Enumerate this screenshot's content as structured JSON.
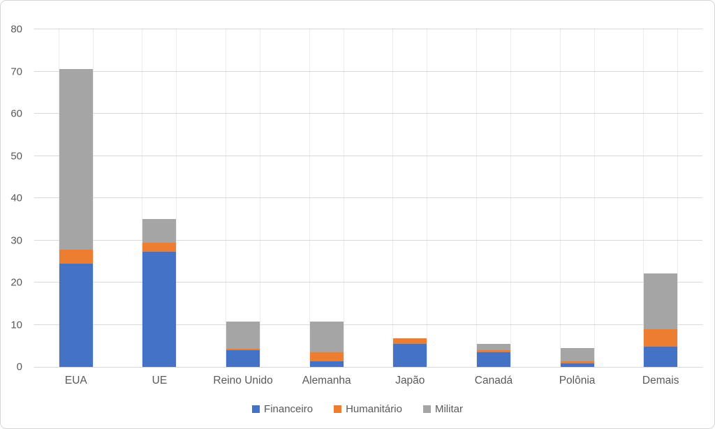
{
  "chart_data": {
    "type": "bar",
    "stacked": true,
    "title": "",
    "xlabel": "",
    "ylabel": "",
    "categories": [
      "EUA",
      "UE",
      "Reino Unido",
      "Alemanha",
      "Japão",
      "Canadá",
      "Polônia",
      "Demais"
    ],
    "series": [
      {
        "name": "Financeiro",
        "color": "#4472C4",
        "values": [
          24.4,
          27.2,
          4.0,
          1.4,
          5.4,
          3.4,
          0.8,
          4.8
        ]
      },
      {
        "name": "Humanitário",
        "color": "#ED7D31",
        "values": [
          3.4,
          2.3,
          0.3,
          2.0,
          1.4,
          0.6,
          0.5,
          4.1
        ]
      },
      {
        "name": "Militar",
        "color": "#A5A5A5",
        "values": [
          42.8,
          5.5,
          6.5,
          7.4,
          0.0,
          1.5,
          3.2,
          13.3
        ]
      }
    ],
    "totals": [
      70.6,
      35.0,
      10.8,
      10.8,
      6.8,
      5.5,
      4.5,
      22.2
    ],
    "ylim": [
      0,
      80
    ],
    "ytick_step": 10,
    "ytick_labels": [
      "0",
      "10",
      "20",
      "30",
      "40",
      "50",
      "60",
      "70",
      "80"
    ],
    "grid": true,
    "legend_position": "bottom",
    "gridline_color": "#D9D9D9",
    "text_color": "#595959",
    "background_color": "#FFFFFF",
    "border_color": "#D6D6D6"
  }
}
